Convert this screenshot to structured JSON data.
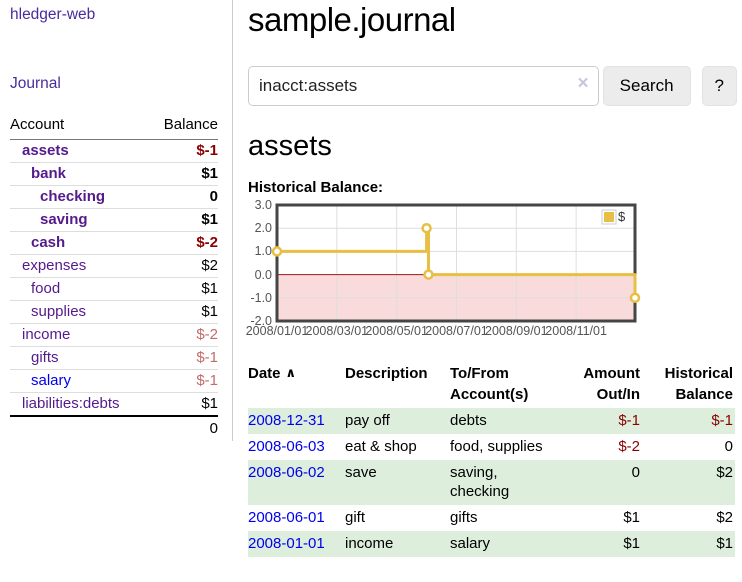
{
  "sidebar": {
    "brand": "hledger-web",
    "journal_link": "Journal",
    "accounts": {
      "header_account": "Account",
      "header_balance": "Balance",
      "rows": [
        {
          "name": "assets",
          "balance": "$-1"
        },
        {
          "name": "bank",
          "balance": "$1"
        },
        {
          "name": "checking",
          "balance": "0"
        },
        {
          "name": "saving",
          "balance": "$1"
        },
        {
          "name": "cash",
          "balance": "$-2"
        },
        {
          "name": "expenses",
          "balance": "$2"
        },
        {
          "name": "food",
          "balance": "$1"
        },
        {
          "name": "supplies",
          "balance": "$1"
        },
        {
          "name": "income",
          "balance": "$-2"
        },
        {
          "name": "gifts",
          "balance": "$-1"
        },
        {
          "name": "salary",
          "balance": "$-1"
        },
        {
          "name": "liabilities:debts",
          "balance": "$1"
        }
      ],
      "total": "0"
    }
  },
  "main": {
    "title": "sample.journal",
    "search": {
      "value": "inacct:assets",
      "clear_icon": "×",
      "button_label": "Search",
      "help_label": "?"
    },
    "account_heading": "assets",
    "chart_title": "Historical Balance:"
  },
  "chart_data": {
    "type": "line",
    "title": "Historical Balance:",
    "series": [
      {
        "name": "$",
        "color": "#e7bf45",
        "step": true,
        "marker": "open-circle",
        "points": [
          {
            "date": "2008/01/01",
            "y": 1
          },
          {
            "date": "2008/06/01",
            "y": 2
          },
          {
            "date": "2008/06/03",
            "y": 0
          },
          {
            "date": "2008/12/31",
            "y": -1
          }
        ]
      }
    ],
    "xlim": [
      "2008/01/01",
      "2008/12/31"
    ],
    "ylim": [
      -2,
      3
    ],
    "x_ticks": [
      "2008/01/01",
      "2008/03/01",
      "2008/05/01",
      "2008/07/01",
      "2008/09/01",
      "2008/11/01"
    ],
    "y_ticks": [
      "3.0",
      "2.0",
      "1.0",
      "0.0",
      "-1.0",
      "-2.0"
    ],
    "grid": true,
    "legend_position": "top-right",
    "colors": {
      "below_zero_fill": "#f9dbdb",
      "zero_line": "#a01515",
      "grid": "#dedede",
      "border": "#454545",
      "axis_text": "#545454"
    }
  },
  "register": {
    "headers": {
      "date": "Date",
      "description": "Description",
      "account": "To/From Account(s)",
      "amount": "Amount Out/In",
      "balance": "Historical Balance"
    },
    "sort": {
      "column": "date",
      "direction": "ascending",
      "icon": "∧"
    },
    "rows": [
      {
        "date": "2008-12-31",
        "description": "pay off",
        "account": "debts",
        "amount": "$-1",
        "balance": "$-1"
      },
      {
        "date": "2008-06-03",
        "description": "eat & shop",
        "account": "food, supplies",
        "amount": "$-2",
        "balance": "0"
      },
      {
        "date": "2008-06-02",
        "description": "save",
        "account": "saving, checking",
        "amount": "0",
        "balance": "$2"
      },
      {
        "date": "2008-06-01",
        "description": "gift",
        "account": "gifts",
        "amount": "$1",
        "balance": "$2"
      },
      {
        "date": "2008-01-01",
        "description": "income",
        "account": "salary",
        "amount": "$1",
        "balance": "$1"
      }
    ]
  },
  "colors": {
    "link_purple": "#551a8b",
    "nav_purple": "#4a2b9d",
    "link_blue": "#0000ee",
    "negative_strong": "#8b0000",
    "negative_soft": "#c46a6a",
    "row_alt_green": "#ddeedd",
    "series_gold": "#e7bf45"
  }
}
